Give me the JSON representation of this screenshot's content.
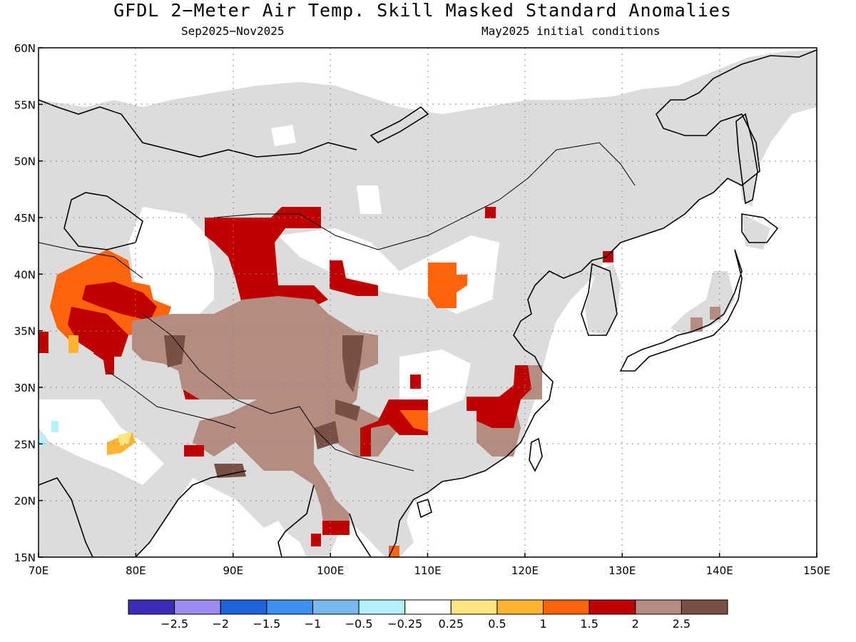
{
  "title": "GFDL 2−Meter Air Temp. Skill Masked Standard Anomalies",
  "subtitle_left": "Sep2025−Nov2025",
  "subtitle_right": "May2025 initial conditions",
  "map": {
    "region": "East and South Asia",
    "lon_range": [
      70,
      150
    ],
    "lat_range": [
      15,
      60
    ],
    "lon_ticks": [
      "70E",
      "80E",
      "90E",
      "100E",
      "110E",
      "120E",
      "130E",
      "140E",
      "150E"
    ],
    "lat_ticks": [
      "15N",
      "20N",
      "25N",
      "30N",
      "35N",
      "40N",
      "45N",
      "50N",
      "55N",
      "60N"
    ],
    "land_mask_color": "#dcdcdc",
    "ocean_color": "#ffffff",
    "grid": "dotted"
  },
  "colorbar": {
    "labels": [
      "−2.5",
      "−2",
      "−1.5",
      "−1",
      "−0.5",
      "−0.25",
      "0.25",
      "0.5",
      "1",
      "1.5",
      "2",
      "2.5"
    ],
    "colors": [
      "#3b2db8",
      "#9a8cf0",
      "#1f63dc",
      "#3d8ff0",
      "#78b8f0",
      "#b4f0fa",
      "#ffffff",
      "#ffe680",
      "#ffb432",
      "#ff640a",
      "#c00000",
      "#b48c82",
      "#785046"
    ]
  }
}
